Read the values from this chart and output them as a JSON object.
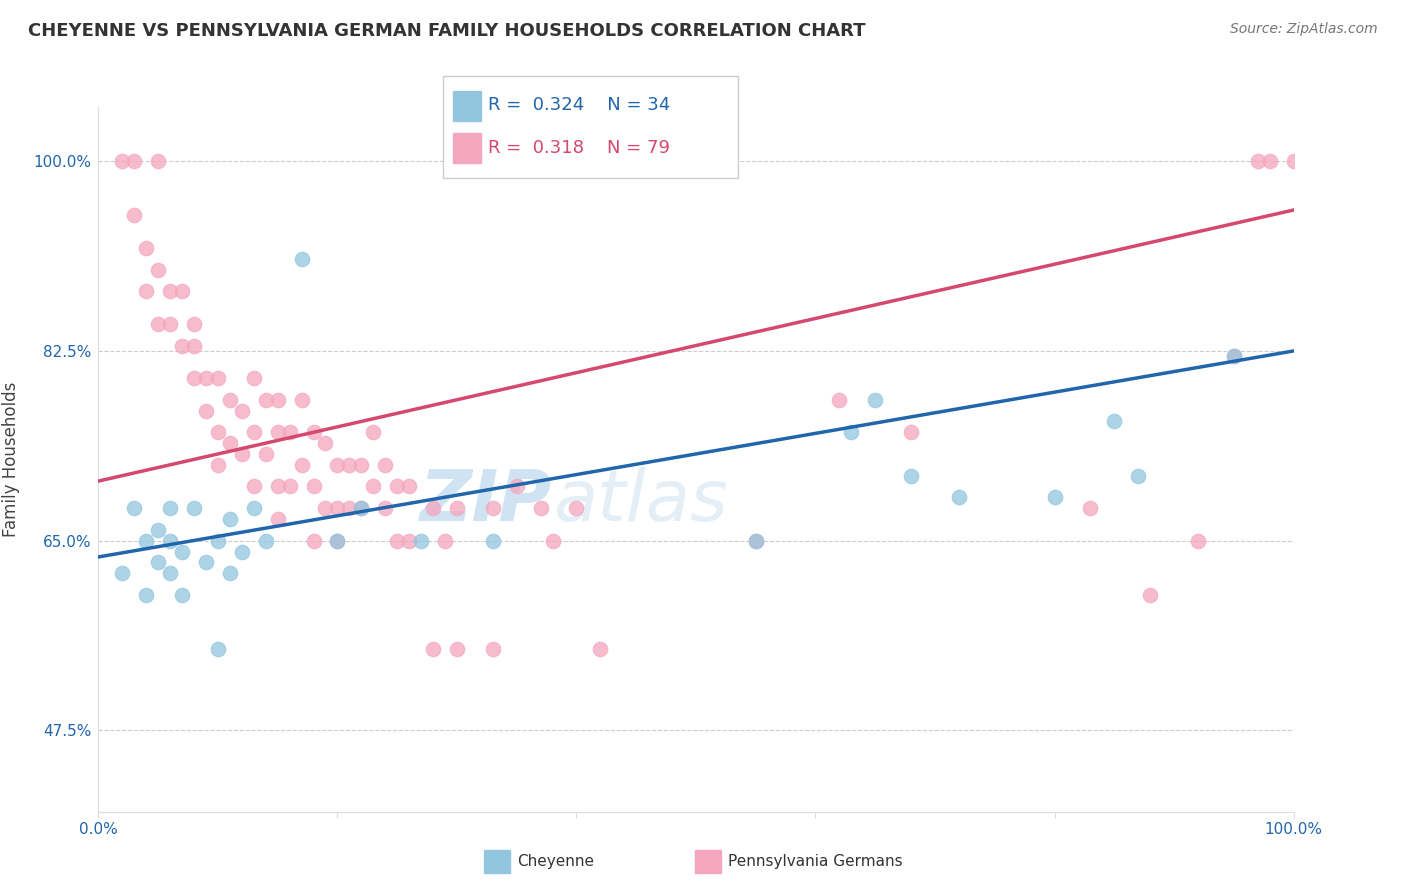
{
  "title": "CHEYENNE VS PENNSYLVANIA GERMAN FAMILY HOUSEHOLDS CORRELATION CHART",
  "source_text": "Source: ZipAtlas.com",
  "ylabel": "Family Households",
  "xlim": [
    0,
    100
  ],
  "ylim": [
    40,
    105
  ],
  "yticks": [
    47.5,
    65.0,
    82.5,
    100.0
  ],
  "xticks": [
    0,
    20,
    40,
    60,
    80,
    100
  ],
  "xtick_labels": [
    "0.0%",
    "",
    "",
    "",
    "",
    "100.0%"
  ],
  "ytick_labels": [
    "47.5%",
    "65.0%",
    "82.5%",
    "100.0%"
  ],
  "legend_r_cheyenne": "0.324",
  "legend_n_cheyenne": "34",
  "legend_r_pa": "0.318",
  "legend_n_pa": "79",
  "cheyenne_color": "#92c5de",
  "pa_color": "#f4a6be",
  "cheyenne_line_color": "#2166ac",
  "pa_line_color": "#d6496e",
  "watermark_zip": "ZIP",
  "watermark_atlas": "atlas",
  "watermark_color": "#c8dff0",
  "cheyenne_x": [
    2,
    3,
    4,
    4,
    5,
    5,
    6,
    6,
    6,
    7,
    7,
    8,
    9,
    10,
    10,
    11,
    11,
    12,
    13,
    14,
    17,
    20,
    22,
    27,
    33,
    55,
    63,
    65,
    68,
    72,
    80,
    85,
    87,
    95
  ],
  "cheyenne_y": [
    62,
    68,
    65,
    60,
    66,
    63,
    68,
    65,
    62,
    64,
    60,
    68,
    63,
    65,
    55,
    67,
    62,
    64,
    68,
    65,
    91,
    65,
    68,
    65,
    65,
    65,
    75,
    78,
    71,
    69,
    69,
    76,
    71,
    82
  ],
  "pa_x": [
    2,
    3,
    3,
    4,
    4,
    5,
    5,
    5,
    6,
    6,
    7,
    7,
    8,
    8,
    8,
    9,
    9,
    10,
    10,
    10,
    11,
    11,
    12,
    12,
    13,
    13,
    13,
    14,
    14,
    15,
    15,
    15,
    15,
    16,
    16,
    17,
    17,
    18,
    18,
    18,
    19,
    19,
    20,
    20,
    20,
    21,
    21,
    22,
    22,
    23,
    23,
    24,
    24,
    25,
    25,
    26,
    26,
    28,
    28,
    29,
    30,
    30,
    33,
    33,
    35,
    37,
    38,
    40,
    42,
    55,
    62,
    68,
    83,
    88,
    92,
    95,
    97,
    98,
    100
  ],
  "pa_y": [
    100,
    100,
    95,
    92,
    88,
    90,
    85,
    100,
    85,
    88,
    88,
    83,
    83,
    85,
    80,
    80,
    77,
    80,
    75,
    72,
    78,
    74,
    77,
    73,
    80,
    75,
    70,
    78,
    73,
    78,
    75,
    70,
    67,
    75,
    70,
    78,
    72,
    75,
    70,
    65,
    74,
    68,
    72,
    68,
    65,
    72,
    68,
    72,
    68,
    75,
    70,
    72,
    68,
    70,
    65,
    70,
    65,
    68,
    55,
    65,
    68,
    55,
    68,
    55,
    70,
    68,
    65,
    68,
    55,
    65,
    78,
    75,
    68,
    60,
    65,
    82,
    100,
    100,
    100
  ],
  "blue_line_x0": 0,
  "blue_line_y0": 63.5,
  "blue_line_x1": 100,
  "blue_line_y1": 82.5,
  "pink_line_x0": 0,
  "pink_line_y0": 70.5,
  "pink_line_x1": 100,
  "pink_line_y1": 95.5
}
